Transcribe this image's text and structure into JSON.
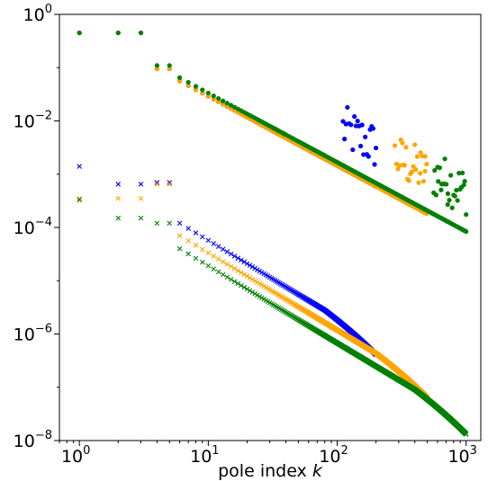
{
  "chart_data": {
    "type": "scatter",
    "title": "",
    "xlabel": "pole index",
    "xlabel_var": "k",
    "ylabel": "",
    "xscale": "log",
    "yscale": "log",
    "xlim": [
      0.7,
      1300
    ],
    "ylim": [
      1e-08,
      1
    ],
    "grid": false,
    "legend": "none",
    "x_ticks": [
      {
        "value": 1,
        "base": "10",
        "exp": "0"
      },
      {
        "value": 10,
        "base": "10",
        "exp": "1"
      },
      {
        "value": 100,
        "base": "10",
        "exp": "2"
      },
      {
        "value": 1000,
        "base": "10",
        "exp": "3"
      }
    ],
    "y_ticks": [
      {
        "value": 1,
        "base": "10",
        "exp": "0"
      },
      {
        "value": 0.01,
        "base": "10",
        "exp": "−2"
      },
      {
        "value": 0.0001,
        "base": "10",
        "exp": "−4"
      },
      {
        "value": 1e-06,
        "base": "10",
        "exp": "−6"
      },
      {
        "value": 1e-08,
        "base": "10",
        "exp": "−8"
      }
    ],
    "series": [
      {
        "marker": "circle",
        "color": "#0000ff",
        "n_max": 200,
        "points": [
          [
            1,
            0.45
          ],
          [
            2,
            0.45
          ],
          [
            3,
            0.45
          ],
          [
            4,
            0.095
          ],
          [
            5,
            0.095
          ]
        ],
        "trend": {
          "k0": 4,
          "y0": 0.095,
          "slope": -1.3,
          "k_end": 200
        }
      },
      {
        "marker": "x",
        "color": "#0000ff",
        "n_max": 200,
        "points": [
          [
            1,
            0.0014
          ],
          [
            2,
            0.00065
          ],
          [
            3,
            0.00065
          ],
          [
            4,
            0.0007
          ],
          [
            5,
            0.0007
          ]
        ],
        "trend": {
          "k0": 6,
          "y0": 0.00012,
          "slope": -1.45,
          "k_end": 200
        }
      },
      {
        "marker": "circle",
        "color": "#ffa500",
        "n_max": 500,
        "points": [
          [
            1,
            0.45
          ],
          [
            2,
            0.45
          ],
          [
            3,
            0.45
          ],
          [
            4,
            0.095
          ],
          [
            5,
            0.095
          ]
        ],
        "trend": {
          "k0": 4,
          "y0": 0.095,
          "slope": -1.3,
          "k_end": 500
        }
      },
      {
        "marker": "x",
        "color": "#ffa500",
        "n_max": 500,
        "points": [
          [
            1,
            0.00035
          ],
          [
            2,
            0.00035
          ],
          [
            3,
            0.00035
          ],
          [
            4,
            0.00065
          ],
          [
            5,
            0.00065
          ]
        ],
        "trend": {
          "k0": 6,
          "y0": 7e-05,
          "slope": -1.45,
          "k_end": 500
        }
      },
      {
        "marker": "circle",
        "color": "#008000",
        "n_max": 1000,
        "points": [
          [
            1,
            0.45
          ],
          [
            2,
            0.45
          ],
          [
            3,
            0.45
          ],
          [
            4,
            0.11
          ],
          [
            5,
            0.11
          ]
        ],
        "trend": {
          "k0": 4,
          "y0": 0.11,
          "slope": -1.3,
          "k_end": 1000
        }
      },
      {
        "marker": "x",
        "color": "#008000",
        "n_max": 1000,
        "points": [
          [
            1,
            0.00033
          ],
          [
            2,
            0.00015
          ],
          [
            3,
            0.00015
          ],
          [
            4,
            0.00012
          ],
          [
            5,
            0.00012
          ]
        ],
        "trend": {
          "k0": 6,
          "y0": 4e-05,
          "slope": -1.45,
          "k_end": 1000
        }
      }
    ]
  }
}
